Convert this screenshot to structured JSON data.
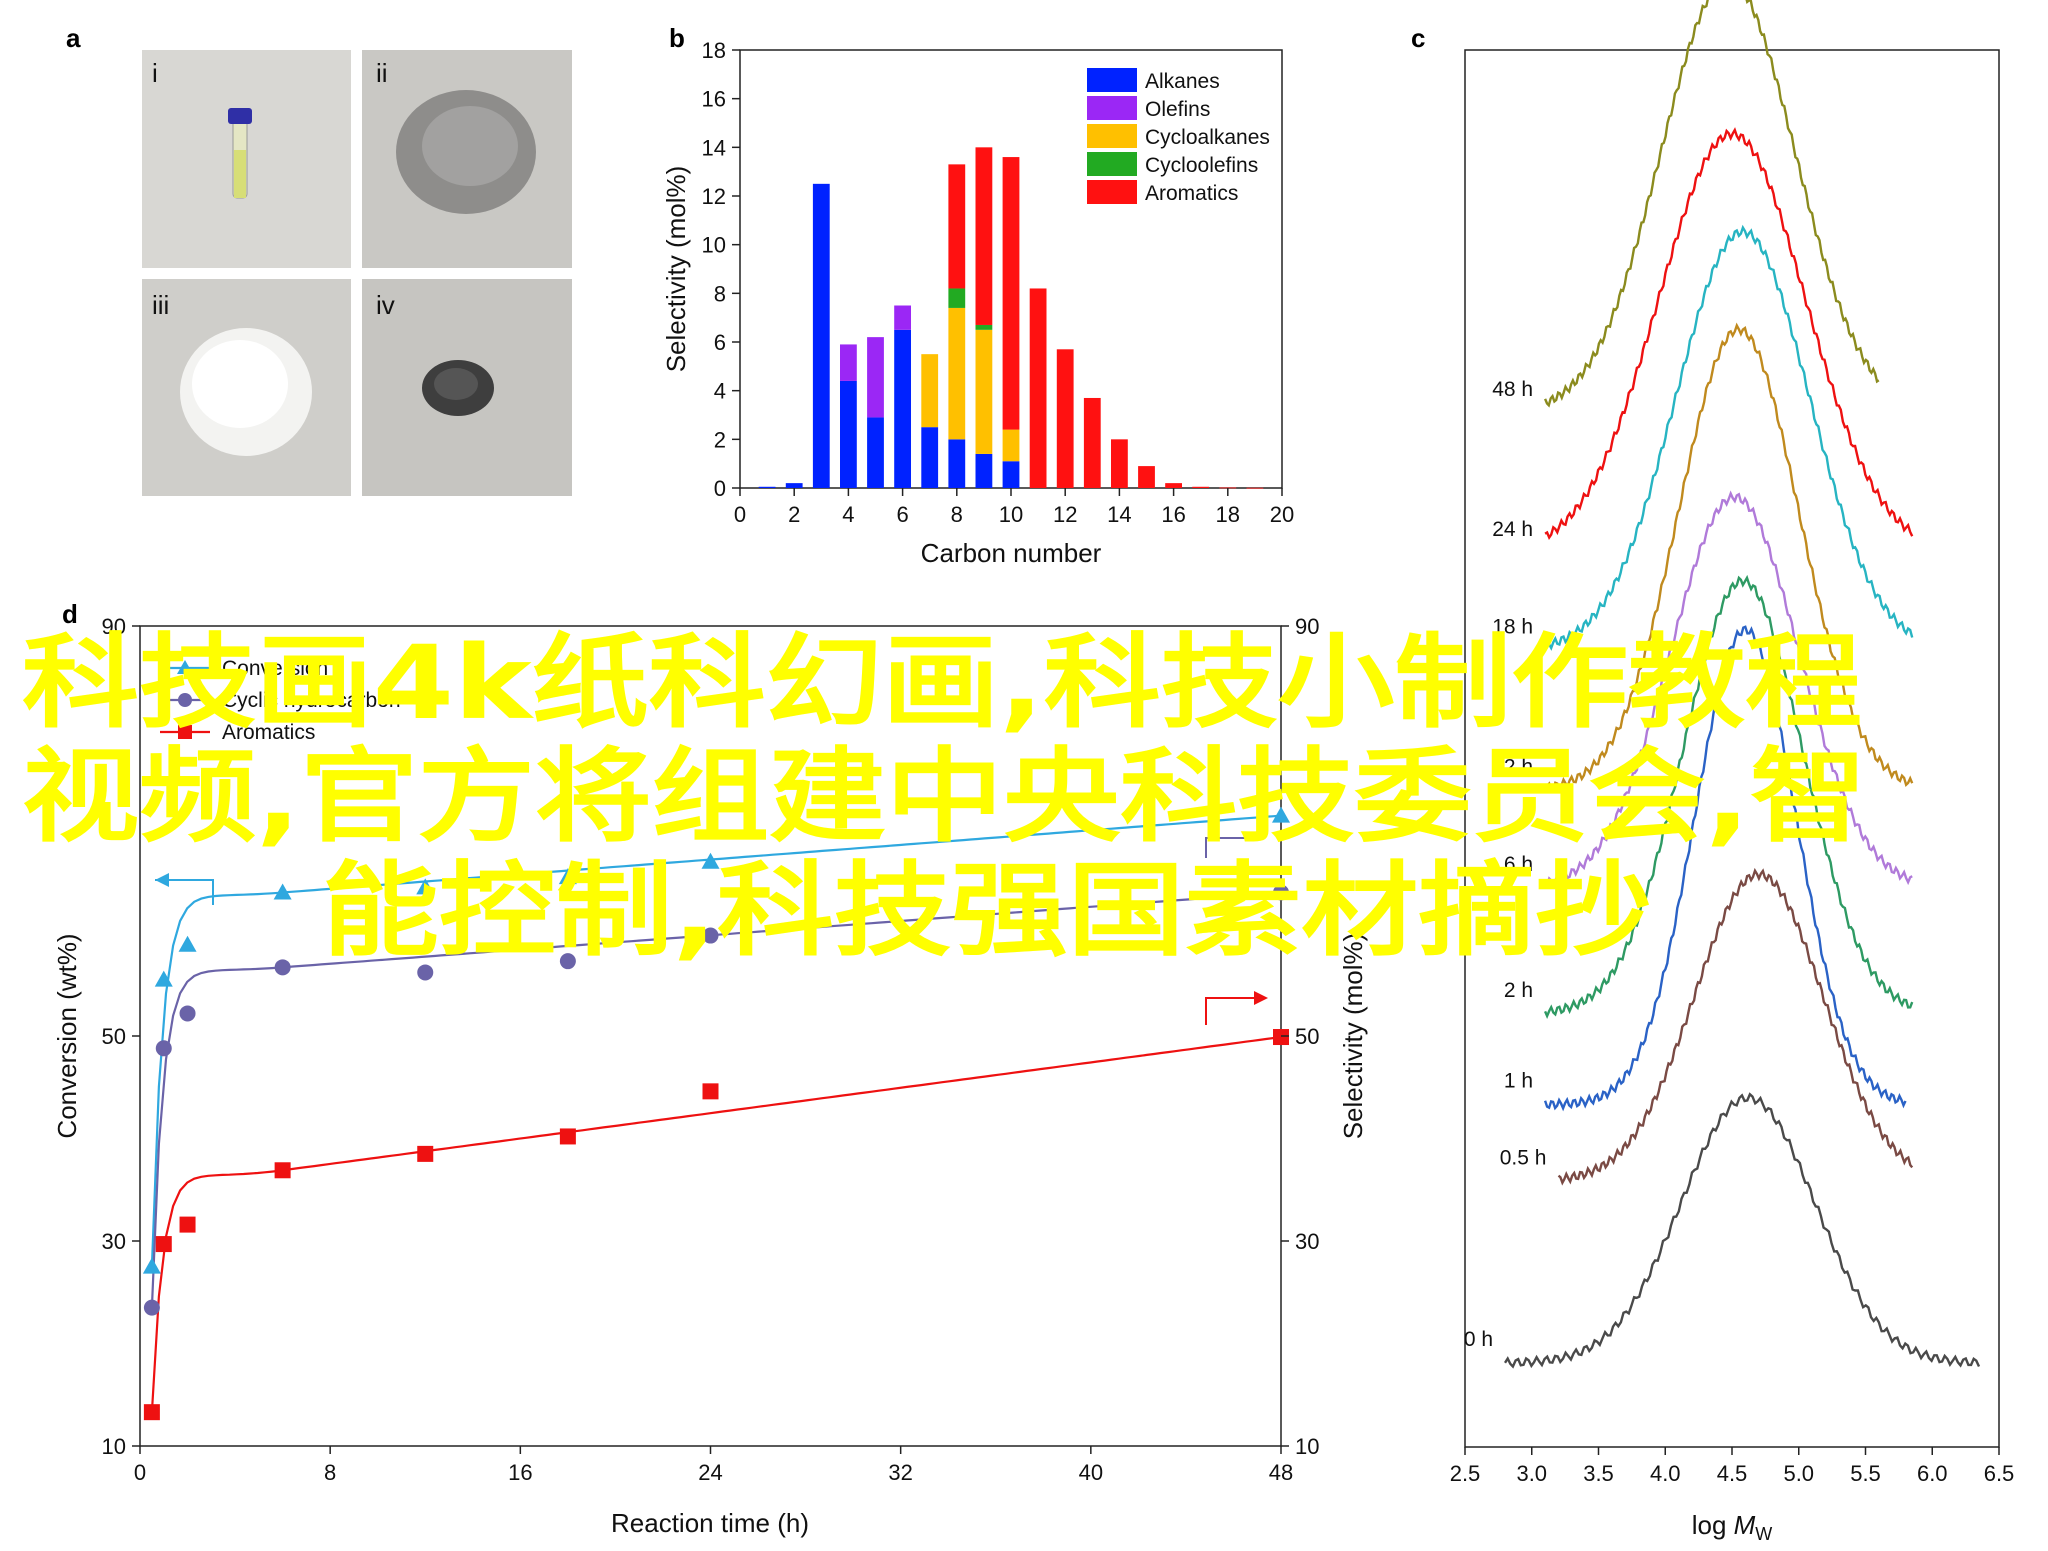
{
  "panels": {
    "a": {
      "letter": "a",
      "photos": [
        {
          "label": "i",
          "subject": "vial"
        },
        {
          "label": "ii",
          "subject": "grey-powder"
        },
        {
          "label": "iii",
          "subject": "white-powder"
        },
        {
          "label": "iv",
          "subject": "dark-powder"
        }
      ]
    },
    "b": {
      "letter": "b"
    },
    "c": {
      "letter": "c"
    },
    "d": {
      "letter": "d"
    }
  },
  "overlay_text": {
    "line1": "科技画4k纸科幻画,科技小制作教程",
    "line2": "视频,官方将组建中央科技委员会,智",
    "line3": "能控制,科技强国素材摘抄"
  },
  "chart_data": [
    {
      "id": "b",
      "type": "bar",
      "stacked": true,
      "xlabel": "Carbon number",
      "ylabel": "Selectivity (mol%)",
      "xlim": [
        0,
        20
      ],
      "ylim": [
        0,
        18
      ],
      "xticks": [
        0,
        2,
        4,
        6,
        8,
        10,
        12,
        14,
        16,
        18,
        20
      ],
      "yticks": [
        0,
        2,
        4,
        6,
        8,
        10,
        12,
        14,
        16,
        18
      ],
      "legend_position": "top-right",
      "categories": [
        1,
        2,
        3,
        4,
        5,
        6,
        7,
        8,
        9,
        10,
        11,
        12,
        13,
        14,
        15,
        16,
        17,
        18,
        19
      ],
      "series": [
        {
          "name": "Alkanes",
          "color": "#0022ff",
          "values": [
            0.05,
            0.2,
            12.5,
            4.4,
            2.9,
            6.5,
            2.5,
            2.0,
            1.4,
            1.1,
            0,
            0,
            0,
            0,
            0,
            0,
            0,
            0,
            0
          ]
        },
        {
          "name": "Olefins",
          "color": "#9b27f5",
          "values": [
            0,
            0,
            0,
            1.5,
            3.3,
            1.0,
            0,
            0,
            0,
            0,
            0,
            0,
            0,
            0,
            0,
            0,
            0,
            0,
            0
          ]
        },
        {
          "name": "Cycloalkanes",
          "color": "#ffc000",
          "values": [
            0,
            0,
            0,
            0,
            0,
            0,
            3.0,
            5.4,
            5.1,
            1.3,
            0,
            0,
            0,
            0,
            0,
            0,
            0,
            0,
            0
          ]
        },
        {
          "name": "Cycloolefins",
          "color": "#22aa22",
          "values": [
            0,
            0,
            0,
            0,
            0,
            0,
            0,
            0.8,
            0.2,
            0,
            0,
            0,
            0,
            0,
            0,
            0,
            0,
            0,
            0
          ]
        },
        {
          "name": "Aromatics",
          "color": "#ff1111",
          "values": [
            0,
            0,
            0,
            0,
            0,
            0,
            0,
            5.1,
            7.3,
            11.2,
            8.2,
            5.7,
            3.7,
            2.0,
            0.9,
            0.2,
            0.05,
            0.02,
            0.01
          ]
        }
      ]
    },
    {
      "id": "c",
      "type": "line",
      "xlabel_main": "log ",
      "xlabel_italic": "M",
      "xlabel_sub": "W",
      "xlim": [
        2.5,
        6.5
      ],
      "xticks": [
        "2.5",
        "3.0",
        "3.5",
        "4.0",
        "4.5",
        "5.0",
        "5.5",
        "6.0",
        "6.5"
      ],
      "series": [
        {
          "name": "0 h",
          "color": "#4a4a4a",
          "base": 0.06,
          "amp": 0.19,
          "mu": 4.62,
          "sig": 0.5,
          "x": [
            2.8,
            6.35
          ]
        },
        {
          "name": "0.5 h",
          "color": "#7a4a44",
          "base": 0.19,
          "amp": 0.22,
          "mu": 4.7,
          "sig": 0.48,
          "x": [
            3.2,
            5.85
          ]
        },
        {
          "name": "1 h",
          "color": "#2a62c6",
          "base": 0.245,
          "amp": 0.34,
          "mu": 4.6,
          "sig": 0.38,
          "x": [
            3.1,
            5.8
          ]
        },
        {
          "name": "2 h",
          "color": "#2e9a63",
          "base": 0.31,
          "amp": 0.31,
          "mu": 4.58,
          "sig": 0.45,
          "x": [
            3.1,
            5.85
          ]
        },
        {
          "name": "6 h",
          "color": "#b07ad9",
          "base": 0.4,
          "amp": 0.28,
          "mu": 4.52,
          "sig": 0.48,
          "x": [
            3.1,
            5.85
          ]
        },
        {
          "name": "12 h",
          "color": "#c08a1e",
          "base": 0.47,
          "amp": 0.33,
          "mu": 4.55,
          "sig": 0.45,
          "x": [
            3.1,
            5.85
          ]
        },
        {
          "name": "18 h",
          "color": "#27b4c2",
          "base": 0.57,
          "amp": 0.3,
          "mu": 4.58,
          "sig": 0.5,
          "x": [
            3.1,
            5.85
          ]
        },
        {
          "name": "24 h",
          "color": "#ee1111",
          "base": 0.64,
          "amp": 0.3,
          "mu": 4.5,
          "sig": 0.55,
          "x": [
            3.1,
            5.85
          ]
        },
        {
          "name": "48 h",
          "color": "#8b8b1e",
          "base": 0.74,
          "amp": 0.31,
          "mu": 4.47,
          "sig": 0.5,
          "x": [
            3.1,
            5.6
          ]
        }
      ]
    },
    {
      "id": "d",
      "type": "scatter",
      "xlabel": "Reaction time (h)",
      "ylabel_left": "Conversion (wt%)",
      "ylabel_right": "Selectivity (mol%)",
      "xlim": [
        0,
        48
      ],
      "ylim": [
        10,
        90
      ],
      "xticks": [
        0,
        8,
        16,
        24,
        32,
        40,
        48
      ],
      "yticks_left": [
        10,
        30,
        50,
        90
      ],
      "yticks_right": [
        10,
        30,
        50,
        90
      ],
      "legend_position": "top-left",
      "series": [
        {
          "name": "Conversion",
          "color": "#2fa8df",
          "marker": "triangle",
          "axis": "left",
          "x": [
            0.5,
            1,
            2,
            6,
            12,
            18,
            24,
            48
          ],
          "y": [
            27.5,
            55.5,
            58.9,
            64.0,
            64.5,
            65.5,
            67.0,
            71.5
          ]
        },
        {
          "name": "Cyclic hydrocarbon",
          "color": "#6a63a8",
          "marker": "circle",
          "axis": "right",
          "x": [
            0.5,
            1,
            2,
            6,
            12,
            18,
            24,
            48
          ],
          "y": [
            23.5,
            48.8,
            52.2,
            56.7,
            56.2,
            57.3,
            59.8,
            64.0
          ]
        },
        {
          "name": "Aromatics",
          "color": "#ee1111",
          "marker": "square",
          "axis": "right",
          "x": [
            0.5,
            1,
            2,
            6,
            12,
            18,
            24,
            48
          ],
          "y": [
            13.3,
            29.7,
            31.6,
            36.9,
            38.5,
            40.2,
            44.6,
            49.9
          ]
        }
      ]
    }
  ]
}
